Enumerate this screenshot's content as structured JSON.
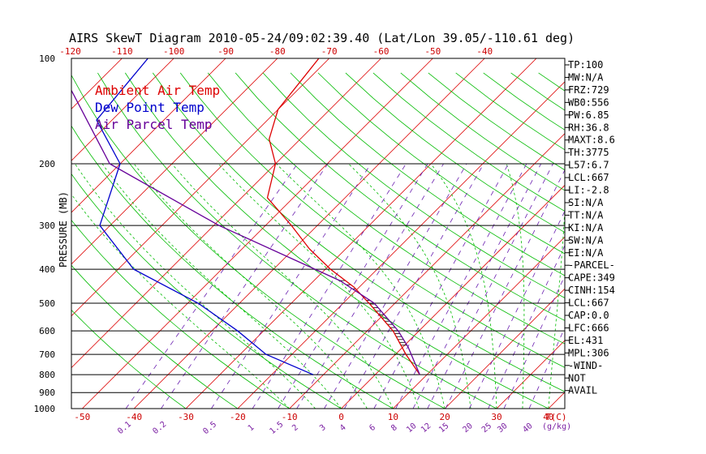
{
  "title": "AIRS SkewT Diagram 2010-05-24/09:02:39.40 (Lat/Lon 39.05/-110.61 deg)",
  "ylabel": "PRESSURE (MB)",
  "legend": [
    {
      "label": "Ambient Air Temp",
      "color": "#dd0000"
    },
    {
      "label": "Dew Point Temp",
      "color": "#0000cc"
    },
    {
      "label": "Air Parcel Temp",
      "color": "#660099"
    }
  ],
  "pressure_ticks": [
    "100",
    "200",
    "300",
    "400",
    "500",
    "600",
    "700",
    "800",
    "900",
    "1000"
  ],
  "top_temp_ticks": [
    "-120",
    "-110",
    "-100",
    "-90",
    "-80",
    "-70",
    "-60",
    "-50",
    "-40"
  ],
  "bottom_temp_ticks": [
    "-50",
    "-40",
    "-30",
    "-20",
    "-10",
    "0",
    "10",
    "20",
    "30",
    "40"
  ],
  "bottom_temp_unit": "T(C)",
  "mixing_ratio_ticks": [
    "0.1",
    "0.2",
    "0.5",
    "1",
    "1.5",
    "2",
    "3",
    "4",
    "6",
    "8",
    "10",
    "12",
    "15",
    "20",
    "25",
    "30",
    "40"
  ],
  "mixing_ratio_unit": "(g/kg)",
  "side_panel": [
    "TP:100",
    "MW:N/A",
    "FRZ:729",
    "WB0:556",
    "PW:6.85",
    "RH:36.8",
    "MAXT:8.6",
    "TH:3775",
    "L57:6.7",
    "LCL:667",
    "LI:-2.8",
    "SI:N/A",
    "TT:N/A",
    "KI:N/A",
    "SW:N/A",
    "EI:N/A",
    "-PARCEL-",
    "CAPE:349",
    "CINH:154",
    "LCL:667",
    "CAP:0.0",
    "LFC:666",
    "EL:431",
    "MPL:306",
    "-WIND-",
    "NOT",
    "AVAIL"
  ],
  "colors": {
    "isotherm": "#dd0000",
    "dry_adiabat": "#00bb00",
    "moist_adiabat": "#00bb00",
    "mixing_ratio": "#6a1fb0",
    "isobar": "#000000"
  },
  "chart_data": {
    "type": "line",
    "title": "AIRS SkewT Diagram 2010-05-24/09:02:39.40 (Lat/Lon 39.05/-110.61 deg)",
    "ylabel": "PRESSURE (MB)",
    "xlabel": "T(C)",
    "y_scale": "log-pressure",
    "ylim": [
      1000,
      100
    ],
    "series": [
      {
        "name": "Ambient Air Temp",
        "points": [
          {
            "p": 100,
            "t": -72
          },
          {
            "p": 140,
            "t": -70
          },
          {
            "p": 170,
            "t": -66
          },
          {
            "p": 200,
            "t": -60
          },
          {
            "p": 250,
            "t": -55
          },
          {
            "p": 300,
            "t": -45
          },
          {
            "p": 350,
            "t": -37
          },
          {
            "p": 400,
            "t": -29
          },
          {
            "p": 450,
            "t": -21
          },
          {
            "p": 500,
            "t": -15
          },
          {
            "p": 600,
            "t": -5
          },
          {
            "p": 700,
            "t": 2
          },
          {
            "p": 800,
            "t": 8.6
          }
        ]
      },
      {
        "name": "Dew Point Temp",
        "points": [
          {
            "p": 100,
            "t": -105
          },
          {
            "p": 150,
            "t": -103
          },
          {
            "p": 200,
            "t": -90
          },
          {
            "p": 300,
            "t": -82
          },
          {
            "p": 400,
            "t": -67
          },
          {
            "p": 500,
            "t": -48
          },
          {
            "p": 600,
            "t": -35
          },
          {
            "p": 700,
            "t": -25
          },
          {
            "p": 800,
            "t": -12
          }
        ]
      },
      {
        "name": "Air Parcel Temp",
        "points": [
          {
            "p": 100,
            "t": -123
          },
          {
            "p": 200,
            "t": -92
          },
          {
            "p": 300,
            "t": -59
          },
          {
            "p": 400,
            "t": -32
          },
          {
            "p": 431,
            "t": -25
          },
          {
            "p": 500,
            "t": -14
          },
          {
            "p": 600,
            "t": -4
          },
          {
            "p": 667,
            "t": 1
          },
          {
            "p": 800,
            "t": 8.6
          }
        ]
      }
    ],
    "cape_region": {
      "p_from": 431,
      "p_to": 666
    }
  }
}
